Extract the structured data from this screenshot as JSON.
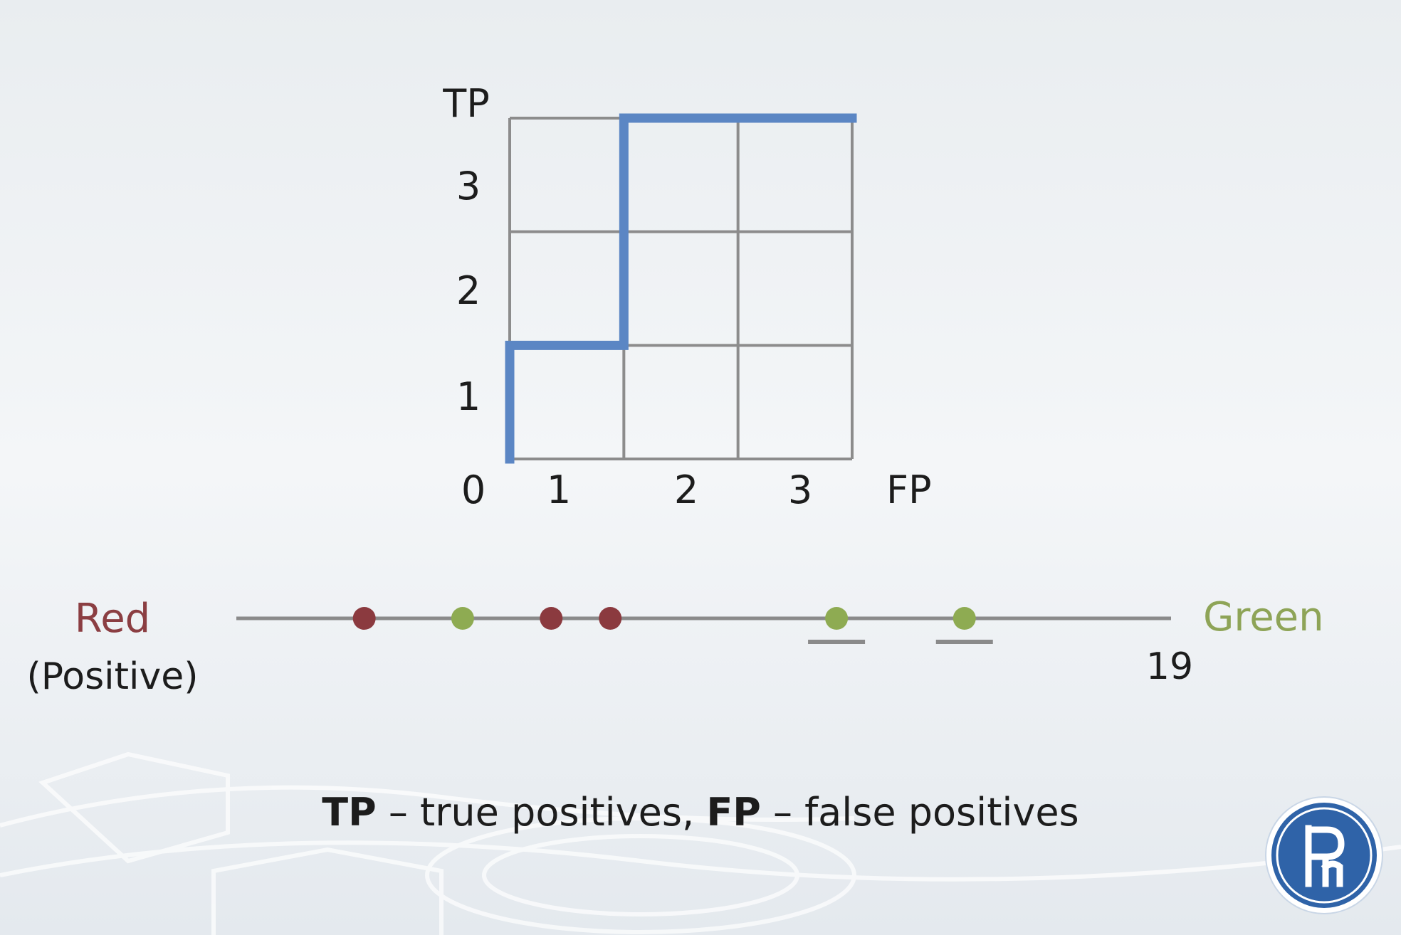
{
  "chart_data": {
    "type": "line",
    "title": "",
    "xlabel": "FP",
    "ylabel": "TP",
    "xlim": [
      0,
      3
    ],
    "ylim": [
      0,
      3
    ],
    "x_ticks": [
      "0",
      "1",
      "2",
      "3"
    ],
    "y_ticks": [
      "1",
      "2",
      "3"
    ],
    "grid": true,
    "series": [
      {
        "color": "#5b86c4",
        "x": [
          0,
          0,
          1,
          1,
          3
        ],
        "y": [
          0,
          1,
          1,
          3,
          3
        ]
      }
    ]
  },
  "number_line": {
    "left_label": "Red",
    "left_sublabel": "(Positive)",
    "right_label": "Green",
    "end_value": "19",
    "colors": {
      "red": "#8b3a3f",
      "green": "#8eab52",
      "line": "#8a8a8a"
    },
    "points": [
      {
        "class": "red",
        "value": 2.6,
        "underlined": false
      },
      {
        "class": "green",
        "value": 4.6,
        "underlined": false
      },
      {
        "class": "red",
        "value": 6.4,
        "underlined": false
      },
      {
        "class": "red",
        "value": 7.6,
        "underlined": false
      },
      {
        "class": "green",
        "value": 12.2,
        "underlined": true
      },
      {
        "class": "green",
        "value": 14.8,
        "underlined": true
      }
    ]
  },
  "caption": {
    "tp_abbr": "TP",
    "tp_text": " – true positives, ",
    "fp_abbr": "FP",
    "fp_text": " – false positives"
  }
}
